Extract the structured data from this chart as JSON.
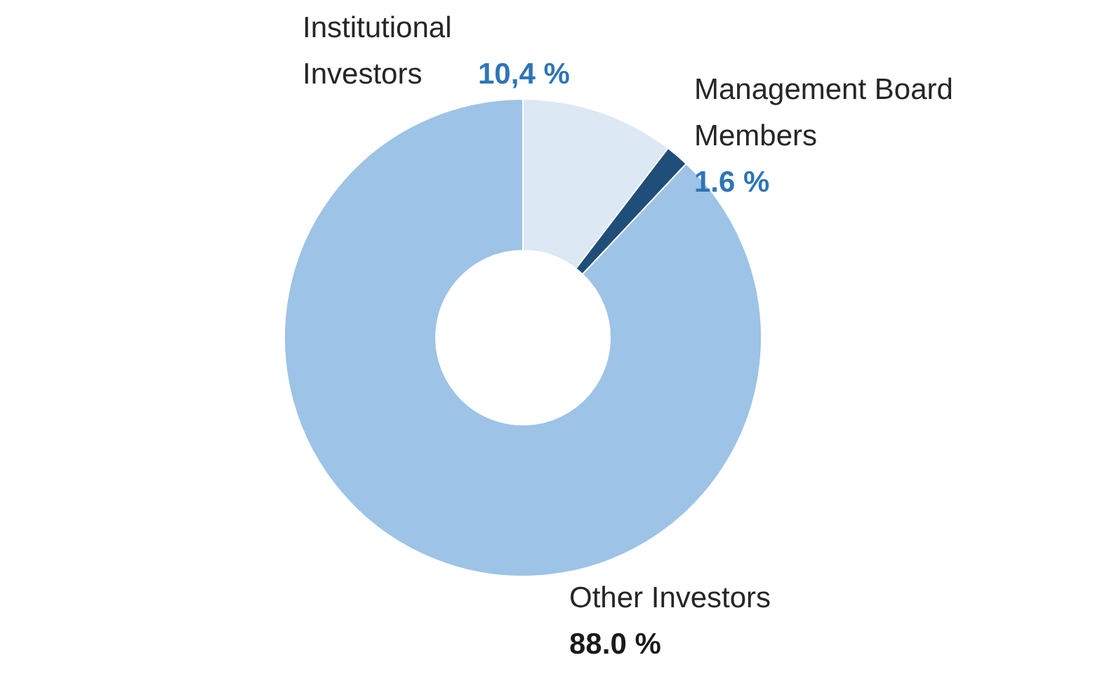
{
  "chart_data": {
    "type": "donut",
    "categories": [
      "Institutional Investors",
      "Management Board Members",
      "Other Investors"
    ],
    "values": [
      10.4,
      1.6,
      88.0
    ],
    "value_labels": [
      "10,4 %",
      "1.6 %",
      "88.0 %"
    ],
    "colors": [
      "#dce8f4",
      "#1f4e79",
      "#9dc3e6"
    ]
  }
}
